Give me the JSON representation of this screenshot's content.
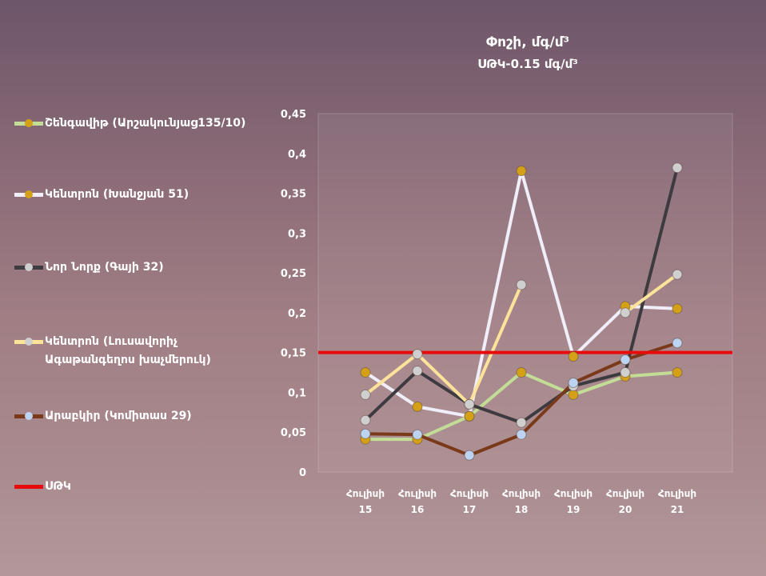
{
  "title": "Փոշի, մգ/մ³",
  "subtitle": "ՍԹԿ-0.15 մգ/մ³",
  "chart_data": {
    "type": "line",
    "categories": [
      [
        "Հուլիսի",
        "15"
      ],
      [
        "Հուլիսի",
        "16"
      ],
      [
        "Հուլիսի",
        "17"
      ],
      [
        "Հուլիսի",
        "18"
      ],
      [
        "Հուլիսի",
        "19"
      ],
      [
        "Հուլիսի",
        "20"
      ],
      [
        "Հուլիսի",
        "21"
      ]
    ],
    "ylim": [
      0,
      0.45
    ],
    "yticks": [
      "0",
      "0,05",
      "0,1",
      "0,15",
      "0,2",
      "0,25",
      "0,3",
      "0,35",
      "0,4",
      "0,45"
    ],
    "series": [
      {
        "name": "Շենգավիթ (Արշակունյաց135/10)",
        "color": "#c3dd96",
        "marker": "#d4a017",
        "values": [
          0.041,
          0.041,
          0.07,
          0.125,
          0.097,
          0.12,
          0.125
        ]
      },
      {
        "name": "Կենտրոն (Խանջյան 51)",
        "color": "#f0eef8",
        "marker": "#d4a017",
        "values": [
          0.125,
          0.082,
          0.07,
          0.378,
          0.145,
          0.208,
          0.205
        ]
      },
      {
        "name": "Նոր Նորք (Գայի 32)",
        "color": "#3d3a40",
        "marker": "#cfcfcf",
        "values": [
          0.065,
          0.127,
          0.085,
          0.062,
          0.108,
          0.125,
          0.382
        ]
      },
      {
        "name": "Կենտրոն (Լուսավորիչ Ագաթանգեղոս խաչմերուկ)",
        "name_lines": [
          "Կենտրոն (Լուսավորիչ",
          "Ագաթանգեղոս խաչմերուկ)"
        ],
        "color": "#fde39a",
        "marker": "#cfcfcf",
        "values": [
          0.097,
          0.148,
          0.085,
          0.235,
          null,
          0.2,
          0.248
        ]
      },
      {
        "name": "Արաբկիր (Կոմիտաս 29)",
        "color": "#7a3a1a",
        "marker": "#bcd4f2",
        "values": [
          0.048,
          0.047,
          0.021,
          0.047,
          0.112,
          0.141,
          0.162
        ]
      }
    ],
    "threshold": {
      "name": "ՍԹԿ",
      "value": 0.15,
      "color": "#e80b0b"
    },
    "grid": false,
    "legend_position": "left"
  }
}
